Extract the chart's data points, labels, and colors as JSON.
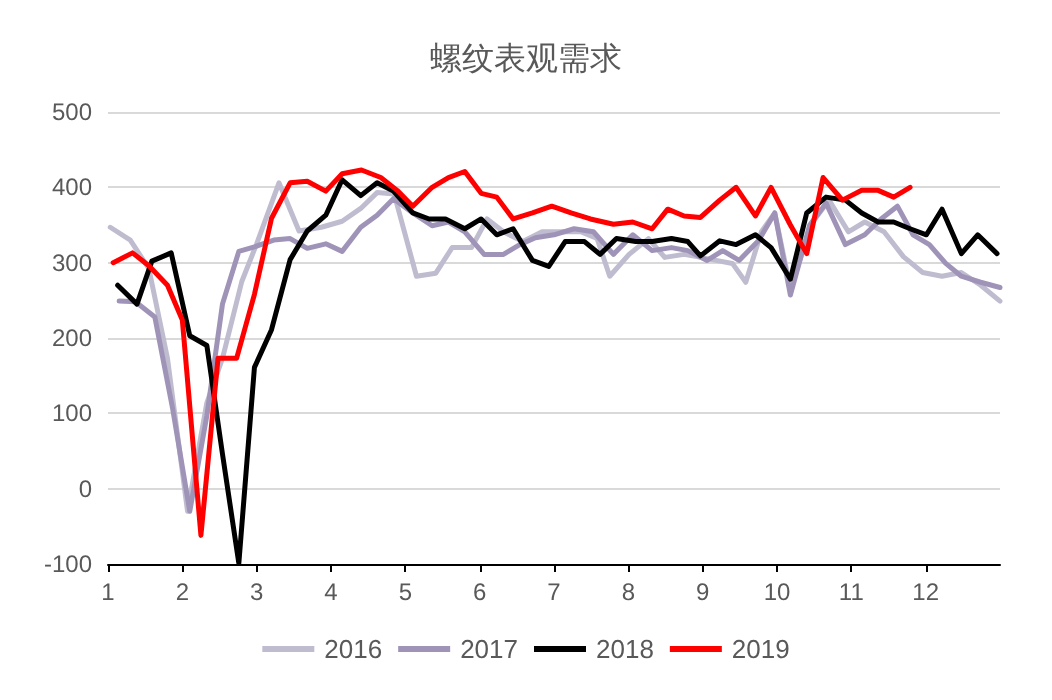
{
  "chart_data": {
    "type": "line",
    "title": "螺纹表观需求",
    "xlim": [
      1,
      13
    ],
    "xticks": [
      1,
      2,
      3,
      4,
      5,
      6,
      7,
      8,
      9,
      10,
      11,
      12
    ],
    "ylim": [
      -100,
      500
    ],
    "yticks": [
      -100,
      0,
      100,
      200,
      300,
      400,
      500
    ],
    "grid": "y",
    "legend": "bottom",
    "marker": "none",
    "line_style": "solid",
    "series": [
      {
        "name": "2016",
        "color": "#bfbcd0",
        "x": [
          1.03,
          1.3,
          1.55,
          1.8,
          2.07,
          2.33,
          2.54,
          2.8,
          3.0,
          3.3,
          3.57,
          3.87,
          4.15,
          4.4,
          4.62,
          4.85,
          5.15,
          5.41,
          5.63,
          5.89,
          6.1,
          6.32,
          6.58,
          6.84,
          7.1,
          7.36,
          7.58,
          7.75,
          8.01,
          8.27,
          8.49,
          8.75,
          8.92,
          9.18,
          9.4,
          9.58,
          9.79,
          9.97,
          10.18,
          10.48,
          10.7,
          10.96,
          11.18,
          11.44,
          11.7,
          11.96,
          12.22,
          12.48,
          12.74,
          13.0
        ],
        "values": [
          347,
          330,
          292,
          173,
          -30,
          114,
          173,
          275,
          325,
          406,
          342,
          347,
          355,
          372,
          393,
          391,
          282,
          286,
          320,
          320,
          358,
          341,
          328,
          341,
          341,
          341,
          332,
          282,
          311,
          332,
          307,
          311,
          308,
          303,
          299,
          274,
          341,
          366,
          266,
          354,
          383,
          341,
          354,
          341,
          308,
          287,
          282,
          287,
          270,
          249
        ]
      },
      {
        "name": "2017",
        "color": "#9f94b8",
        "x": [
          1.15,
          1.37,
          1.63,
          1.87,
          2.1,
          2.33,
          2.54,
          2.76,
          2.97,
          3.23,
          3.45,
          3.68,
          3.93,
          4.15,
          4.4,
          4.62,
          4.84,
          5.1,
          5.36,
          5.58,
          5.8,
          6.06,
          6.32,
          6.54,
          6.75,
          7.0,
          7.27,
          7.53,
          7.8,
          8.06,
          8.32,
          8.58,
          8.8,
          9.06,
          9.27,
          9.49,
          9.75,
          9.97,
          10.18,
          10.44,
          10.66,
          10.92,
          11.18,
          11.4,
          11.62,
          11.83,
          12.05,
          12.27,
          12.48,
          12.74,
          13.0
        ],
        "values": [
          249,
          248,
          228,
          106,
          -30,
          97,
          245,
          315,
          321,
          330,
          332,
          319,
          325,
          315,
          347,
          363,
          385,
          366,
          349,
          354,
          341,
          311,
          311,
          324,
          333,
          337,
          345,
          341,
          311,
          337,
          316,
          320,
          316,
          303,
          316,
          303,
          329,
          366,
          257,
          350,
          379,
          324,
          337,
          358,
          375,
          337,
          324,
          299,
          282,
          274,
          267
        ]
      },
      {
        "name": "2018",
        "color": "#000000",
        "x": [
          1.13,
          1.39,
          1.59,
          1.85,
          2.1,
          2.33,
          2.54,
          2.76,
          2.97,
          3.2,
          3.45,
          3.68,
          3.93,
          4.15,
          4.4,
          4.62,
          4.84,
          5.1,
          5.32,
          5.54,
          5.8,
          6.02,
          6.23,
          6.45,
          6.71,
          6.93,
          7.15,
          7.41,
          7.62,
          7.84,
          8.1,
          8.32,
          8.58,
          8.8,
          8.97,
          9.23,
          9.45,
          9.71,
          9.92,
          10.18,
          10.4,
          10.66,
          10.92,
          11.14,
          11.36,
          11.57,
          11.79,
          12.01,
          12.22,
          12.48,
          12.7,
          12.96
        ],
        "values": [
          270,
          245,
          302,
          313,
          203,
          190,
          46,
          -99,
          161,
          211,
          304,
          342,
          363,
          410,
          389,
          406,
          395,
          366,
          358,
          358,
          345,
          358,
          337,
          345,
          303,
          295,
          328,
          328,
          311,
          332,
          328,
          328,
          332,
          328,
          309,
          329,
          324,
          337,
          320,
          278,
          366,
          387,
          383,
          366,
          354,
          354,
          345,
          337,
          371,
          312,
          337,
          312
        ]
      },
      {
        "name": "2019",
        "color": "#ff0000",
        "x": [
          1.07,
          1.33,
          1.55,
          1.8,
          2.0,
          2.25,
          2.48,
          2.73,
          2.97,
          3.2,
          3.45,
          3.68,
          3.93,
          4.15,
          4.41,
          4.67,
          4.89,
          5.1,
          5.36,
          5.58,
          5.8,
          6.02,
          6.23,
          6.45,
          6.71,
          6.97,
          7.23,
          7.49,
          7.8,
          8.06,
          8.32,
          8.53,
          8.75,
          8.97,
          9.23,
          9.45,
          9.71,
          9.92,
          10.18,
          10.4,
          10.62,
          10.88,
          11.14,
          11.36,
          11.57,
          11.79
        ],
        "values": [
          300,
          313,
          296,
          270,
          224,
          -62,
          173,
          173,
          258,
          359,
          406,
          408,
          395,
          418,
          423,
          413,
          396,
          375,
          400,
          413,
          421,
          392,
          387,
          358,
          366,
          375,
          366,
          358,
          351,
          354,
          345,
          371,
          362,
          360,
          383,
          400,
          362,
          400,
          350,
          312,
          413,
          383,
          396,
          396,
          387,
          400
        ]
      }
    ]
  }
}
